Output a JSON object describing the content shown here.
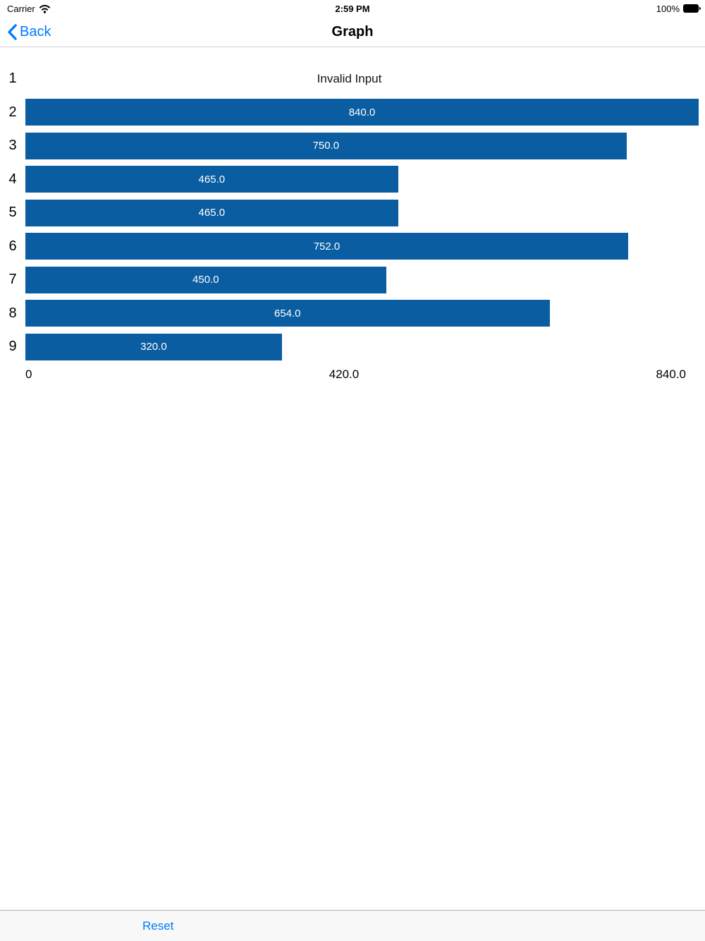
{
  "status_bar": {
    "carrier": "Carrier",
    "time": "2:59 PM",
    "battery_percent": "100%",
    "icons": [
      "wifi-icon",
      "battery-icon"
    ]
  },
  "nav_bar": {
    "back_label": "Back",
    "title": "Graph"
  },
  "chart_data": {
    "type": "bar",
    "orientation": "horizontal",
    "title": "",
    "xlabel": "",
    "ylabel": "",
    "categories": [
      "1",
      "2",
      "3",
      "4",
      "5",
      "6",
      "7",
      "8",
      "9"
    ],
    "values": [
      null,
      840.0,
      750.0,
      465.0,
      465.0,
      752.0,
      450.0,
      654.0,
      320.0
    ],
    "bar_labels": [
      "Invalid Input",
      "840.0",
      "750.0",
      "465.0",
      "465.0",
      "752.0",
      "450.0",
      "654.0",
      "320.0"
    ],
    "invalid_text": "Invalid Input",
    "xlim": [
      0,
      840
    ],
    "x_tick_labels": [
      "0",
      "420.0",
      "840.0"
    ],
    "bar_color": "#0A5DA1",
    "bar_text_color": "#ffffff",
    "grid": false,
    "legend": false
  },
  "footer": {
    "reset_label": "Reset"
  },
  "colors": {
    "accent_blue": "#007AFF",
    "bar_blue": "#0A5DA1",
    "toolbar_bg": "#f8f8f8",
    "hairline": "#b2b2b2"
  }
}
